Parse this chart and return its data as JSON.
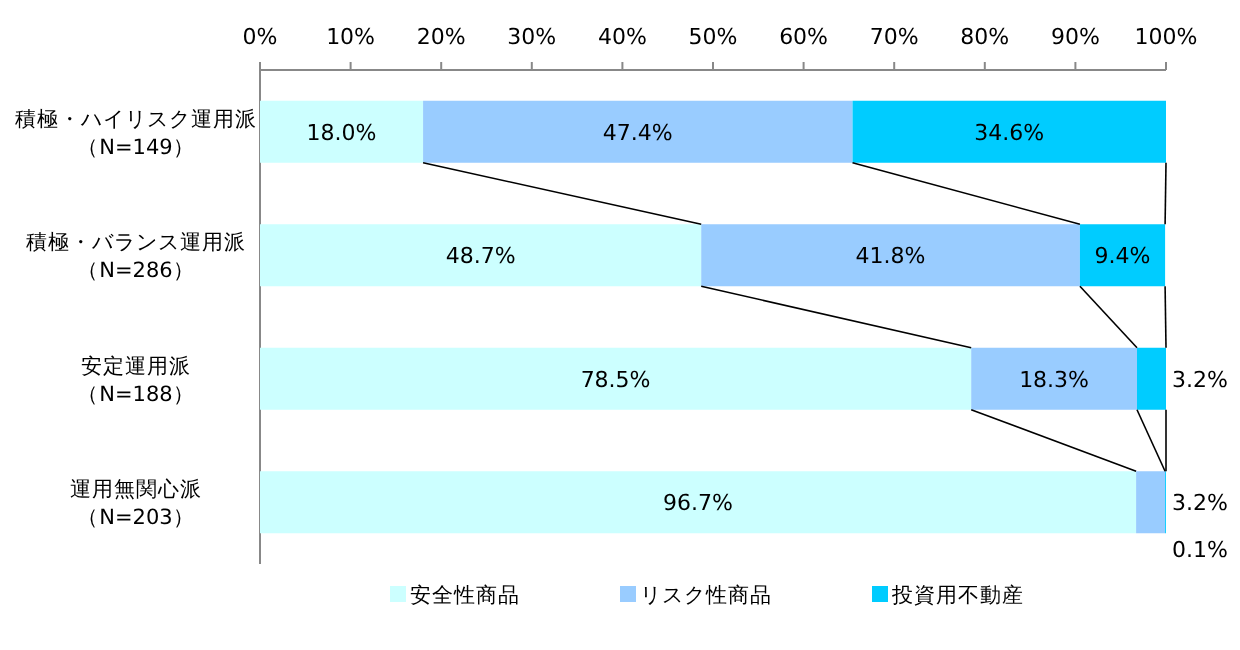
{
  "chart_data": {
    "type": "bar",
    "orientation": "horizontal",
    "stacked": true,
    "categories": [
      "積極・ハイリスク運用派（N=149）",
      "積極・バランス運用派（N=286）",
      "安定運用派（N=188）",
      "運用無関心派（N=203）"
    ],
    "series": [
      {
        "name": "安全性商品",
        "color": "#ccffff",
        "values": [
          18.0,
          48.7,
          78.5,
          96.7
        ],
        "value_labels": [
          "18.0%",
          "48.7%",
          "78.5%",
          "96.7%"
        ]
      },
      {
        "name": "リスク性商品",
        "color": "#99ccff",
        "values": [
          47.4,
          41.8,
          18.3,
          3.2
        ],
        "value_labels": [
          "47.4%",
          "41.8%",
          "18.3%",
          "3.2%"
        ]
      },
      {
        "name": "投資用不動産",
        "color": "#00ccff",
        "values": [
          34.6,
          9.4,
          3.2,
          0.1
        ],
        "value_labels": [
          "34.6%",
          "9.4%",
          "3.2%",
          "0.1%"
        ]
      }
    ],
    "xlim": [
      0,
      100
    ],
    "xticks": [
      {
        "value": 0,
        "label": "0%"
      },
      {
        "value": 10,
        "label": "10%"
      },
      {
        "value": 20,
        "label": "20%"
      },
      {
        "value": 30,
        "label": "30%"
      },
      {
        "value": 40,
        "label": "40%"
      },
      {
        "value": 50,
        "label": "50%"
      },
      {
        "value": 60,
        "label": "60%"
      },
      {
        "value": 70,
        "label": "70%"
      },
      {
        "value": 80,
        "label": "80%"
      },
      {
        "value": 90,
        "label": "90%"
      },
      {
        "value": 100,
        "label": "100%"
      }
    ],
    "grid": false,
    "legend": "bottom"
  }
}
